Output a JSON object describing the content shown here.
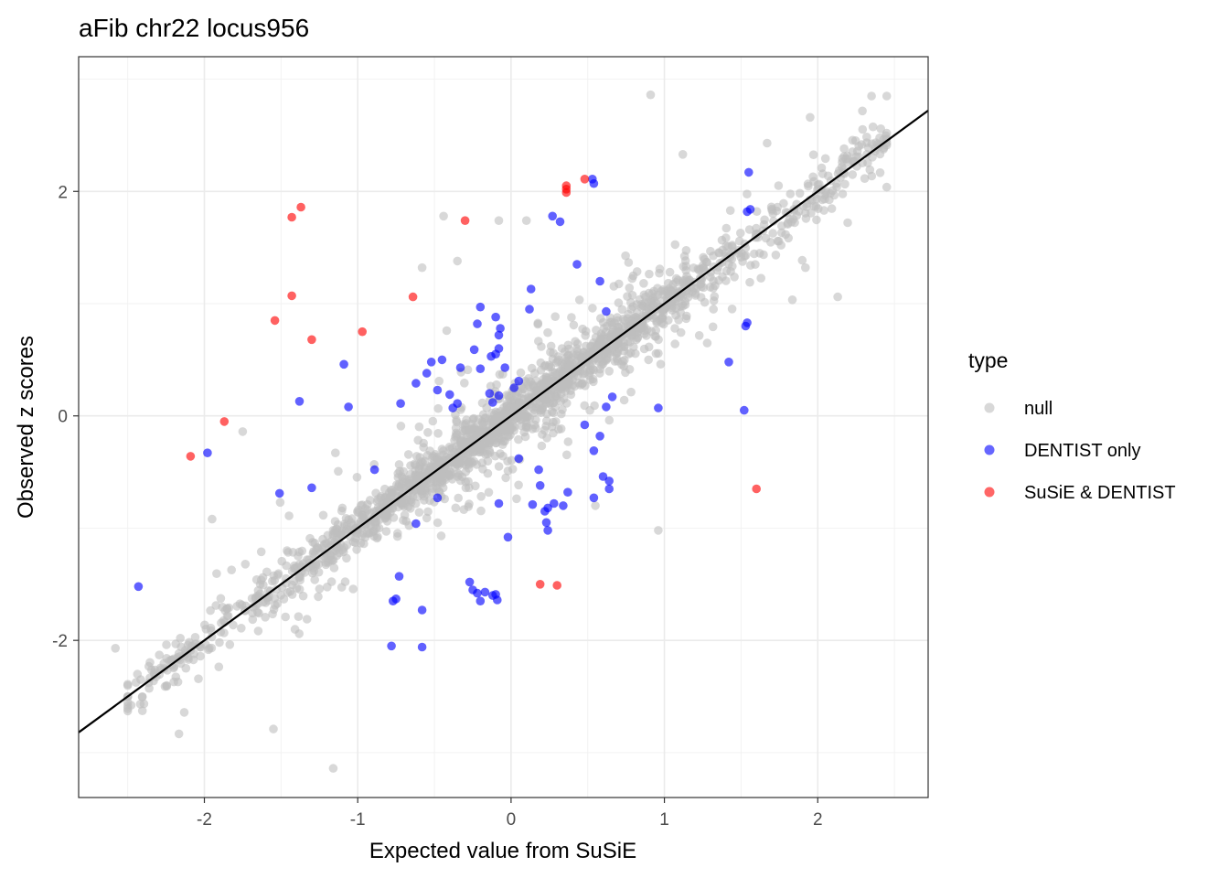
{
  "chart_data": {
    "type": "scatter",
    "title": "aFib chr22 locus956",
    "xlabel": "Expected value from SuSiE",
    "ylabel": "Observed z scores",
    "xlim": [
      -2.82,
      2.72
    ],
    "ylim": [
      -3.4,
      3.2
    ],
    "x_ticks": [
      -2,
      -1,
      0,
      1,
      2
    ],
    "y_ticks": [
      -2,
      0,
      2
    ],
    "x_tick_labels": [
      "-2",
      "-1",
      "0",
      "1",
      "2"
    ],
    "y_tick_labels": [
      "-2",
      "0",
      "2"
    ],
    "grid": true,
    "reference_line": {
      "slope": 1.0,
      "intercept": 0.0,
      "color": "#000000"
    },
    "legend": {
      "title": "type",
      "position": "right",
      "entries": [
        {
          "label": "null",
          "color": "#bebebe"
        },
        {
          "label": "DENTIST only",
          "color": "#0000ff"
        },
        {
          "label": "SuSiE & DENTIST",
          "color": "#ff0000"
        }
      ]
    },
    "series": [
      {
        "name": "SuSiE & DENTIST",
        "color": "#ff0000",
        "points": [
          [
            -1.43,
            1.77
          ],
          [
            -1.37,
            1.86
          ],
          [
            -0.3,
            1.74
          ],
          [
            0.36,
            2.05
          ],
          [
            0.36,
            2.02
          ],
          [
            0.36,
            1.99
          ],
          [
            0.48,
            2.11
          ],
          [
            -1.43,
            1.07
          ],
          [
            -0.64,
            1.06
          ],
          [
            -1.54,
            0.85
          ],
          [
            -0.97,
            0.75
          ],
          [
            -1.3,
            0.68
          ],
          [
            -1.87,
            -0.05
          ],
          [
            -2.09,
            -0.36
          ],
          [
            1.6,
            -0.65
          ],
          [
            0.19,
            -1.5
          ],
          [
            0.3,
            -1.51
          ]
        ]
      },
      {
        "name": "DENTIST only",
        "color": "#0000ff",
        "points": [
          [
            0.53,
            2.11
          ],
          [
            0.54,
            2.07
          ],
          [
            1.55,
            2.17
          ],
          [
            0.27,
            1.78
          ],
          [
            0.32,
            1.73
          ],
          [
            0.43,
            1.35
          ],
          [
            1.54,
            1.82
          ],
          [
            1.56,
            1.84
          ],
          [
            0.58,
            1.2
          ],
          [
            0.13,
            1.13
          ],
          [
            -0.2,
            0.97
          ],
          [
            -0.22,
            0.82
          ],
          [
            -0.07,
            0.78
          ],
          [
            -0.08,
            0.72
          ],
          [
            -0.1,
            0.55
          ],
          [
            -0.13,
            0.53
          ],
          [
            -0.2,
            0.42
          ],
          [
            -0.33,
            0.43
          ],
          [
            -0.45,
            0.5
          ],
          [
            -0.52,
            0.48
          ],
          [
            -0.55,
            0.38
          ],
          [
            -0.62,
            0.29
          ],
          [
            -0.48,
            0.23
          ],
          [
            -0.4,
            0.19
          ],
          [
            -0.35,
            0.11
          ],
          [
            -0.38,
            0.07
          ],
          [
            -0.04,
            0.43
          ],
          [
            0.05,
            0.31
          ],
          [
            0.02,
            0.25
          ],
          [
            -0.08,
            0.18
          ],
          [
            -0.12,
            0.12
          ],
          [
            -0.14,
            0.2
          ],
          [
            -1.09,
            0.46
          ],
          [
            -1.38,
            0.13
          ],
          [
            -1.06,
            0.08
          ],
          [
            -0.72,
            0.11
          ],
          [
            0.62,
            0.08
          ],
          [
            0.66,
            0.17
          ],
          [
            0.96,
            0.07
          ],
          [
            1.42,
            0.48
          ],
          [
            1.54,
            0.83
          ],
          [
            1.53,
            0.8
          ],
          [
            1.52,
            0.05
          ],
          [
            0.48,
            -0.08
          ],
          [
            0.58,
            -0.18
          ],
          [
            0.54,
            -0.31
          ],
          [
            0.64,
            -0.58
          ],
          [
            0.6,
            -0.54
          ],
          [
            0.64,
            -0.65
          ],
          [
            0.54,
            -0.73
          ],
          [
            0.37,
            -0.68
          ],
          [
            0.34,
            -0.8
          ],
          [
            0.28,
            -0.78
          ],
          [
            0.24,
            -0.82
          ],
          [
            0.22,
            -0.85
          ],
          [
            0.23,
            -0.95
          ],
          [
            0.24,
            -1.02
          ],
          [
            0.14,
            -0.79
          ],
          [
            0.05,
            -0.38
          ],
          [
            0.18,
            -0.48
          ],
          [
            0.19,
            -0.62
          ],
          [
            -0.08,
            -0.78
          ],
          [
            -0.02,
            -1.08
          ],
          [
            -0.27,
            -1.48
          ],
          [
            -0.25,
            -1.55
          ],
          [
            -0.22,
            -1.58
          ],
          [
            -0.17,
            -1.57
          ],
          [
            -0.12,
            -1.6
          ],
          [
            -0.1,
            -1.59
          ],
          [
            -0.09,
            -1.64
          ],
          [
            -0.2,
            -1.65
          ],
          [
            -0.58,
            -1.73
          ],
          [
            -0.73,
            -1.43
          ],
          [
            -0.75,
            -1.63
          ],
          [
            -0.77,
            -1.65
          ],
          [
            -0.78,
            -2.05
          ],
          [
            -0.58,
            -2.06
          ],
          [
            -0.48,
            -0.73
          ],
          [
            -0.62,
            -0.96
          ],
          [
            -0.89,
            -0.48
          ],
          [
            -1.3,
            -0.64
          ],
          [
            -1.51,
            -0.69
          ],
          [
            -1.98,
            -0.33
          ],
          [
            -2.43,
            -1.52
          ],
          [
            -0.24,
            0.59
          ],
          [
            -0.1,
            0.88
          ],
          [
            -0.08,
            0.6
          ],
          [
            0.12,
            0.95
          ],
          [
            0.62,
            0.93
          ]
        ]
      },
      {
        "name": "null",
        "color": "#bebebe",
        "points": []
      }
    ]
  }
}
